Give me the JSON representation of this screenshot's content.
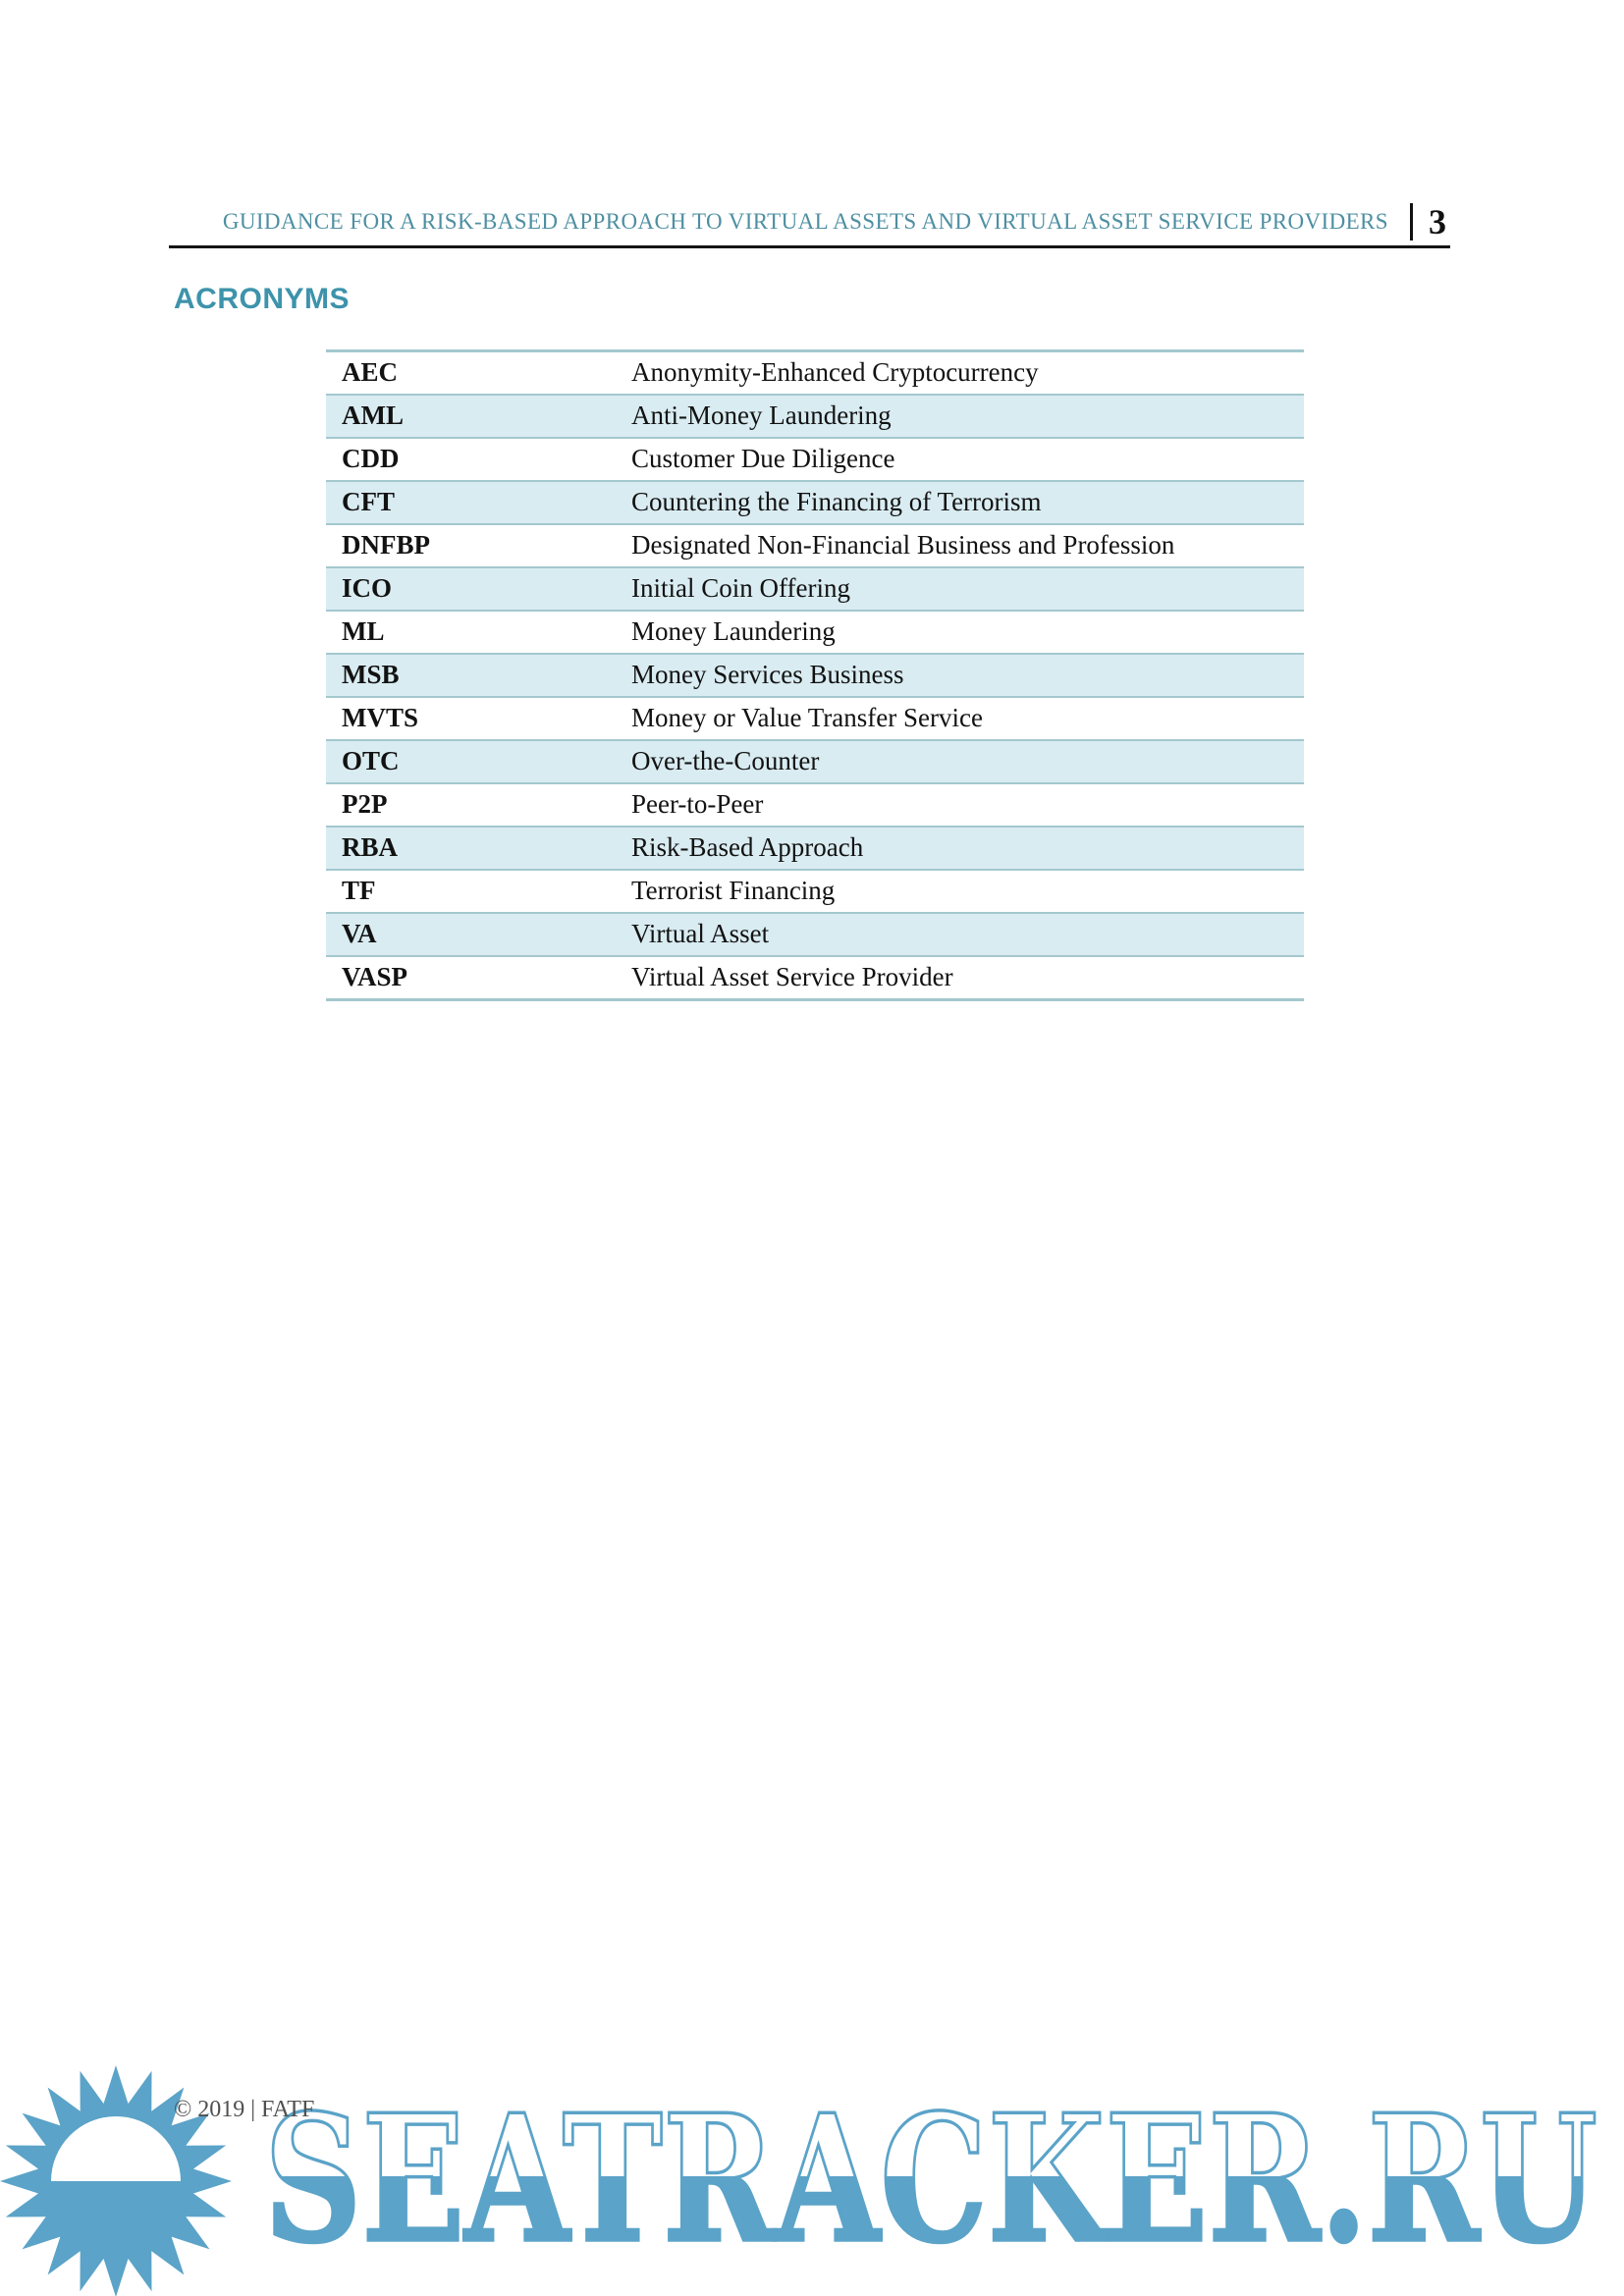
{
  "page": {
    "header": {
      "title": "GUIDANCE FOR A RISK-BASED APPROACH TO VIRTUAL ASSETS AND VIRTUAL ASSET SERVICE PROVIDERS",
      "page_number": "3"
    },
    "section_title": "ACRONYMS",
    "acronyms": {
      "rows": [
        {
          "abbr": "AEC",
          "definition": "Anonymity-Enhanced Cryptocurrency"
        },
        {
          "abbr": "AML",
          "definition": "Anti-Money Laundering"
        },
        {
          "abbr": "CDD",
          "definition": "Customer Due Diligence"
        },
        {
          "abbr": "CFT",
          "definition": "Countering the Financing of Terrorism"
        },
        {
          "abbr": "DNFBP",
          "definition": "Designated Non-Financial Business and Profession"
        },
        {
          "abbr": "ICO",
          "definition": "Initial Coin Offering"
        },
        {
          "abbr": "ML",
          "definition": "Money Laundering"
        },
        {
          "abbr": "MSB",
          "definition": "Money Services Business"
        },
        {
          "abbr": "MVTS",
          "definition": "Money or Value Transfer Service"
        },
        {
          "abbr": "OTC",
          "definition": "Over-the-Counter"
        },
        {
          "abbr": "P2P",
          "definition": "Peer-to-Peer"
        },
        {
          "abbr": "RBA",
          "definition": "Risk-Based Approach"
        },
        {
          "abbr": "TF",
          "definition": "Terrorist Financing"
        },
        {
          "abbr": "VA",
          "definition": "Virtual Asset"
        },
        {
          "abbr": "VASP",
          "definition": "Virtual Asset Service Provider"
        }
      ]
    },
    "footer": {
      "copyright": "© 2019 | FATF"
    },
    "watermark": {
      "text": "SEATRACKER.RU",
      "color": "#5ba3c8"
    },
    "colors": {
      "header_teal": "#4e8fa2",
      "heading_teal": "#3d93ab",
      "stripe_blue": "#d9ecf2",
      "table_border": "#a3c8ce",
      "rule_black": "#151515",
      "watermark_blue": "#5ba3c8"
    }
  }
}
